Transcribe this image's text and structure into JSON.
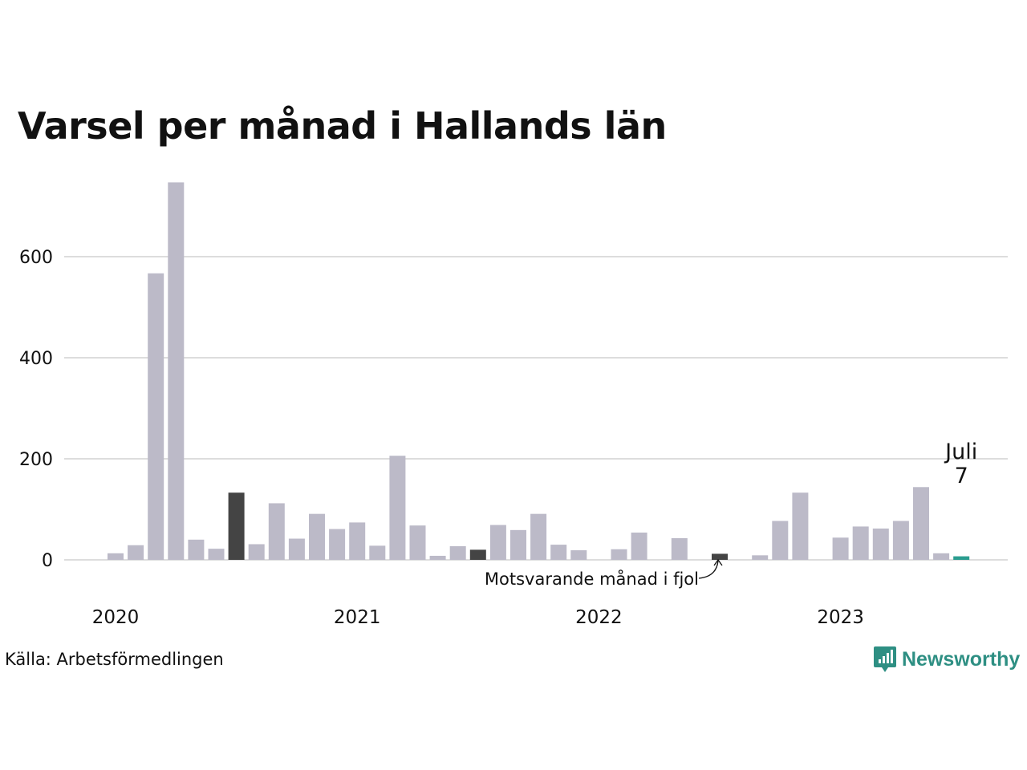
{
  "title": "Varsel per månad i Hallands län",
  "source": "Källa: Arbetsförmedlingen",
  "brand": "Newsworthy",
  "colors": {
    "bar": "#bcbac8",
    "same_month": "#444444",
    "latest": "#2a9d8f",
    "grid": "#dddddd",
    "brand": "#2e8f83"
  },
  "chart_data": {
    "type": "bar",
    "x_start": "2020-01",
    "categories": [
      "2020-01",
      "2020-02",
      "2020-03",
      "2020-04",
      "2020-05",
      "2020-06",
      "2020-07",
      "2020-08",
      "2020-09",
      "2020-10",
      "2020-11",
      "2020-12",
      "2021-01",
      "2021-02",
      "2021-03",
      "2021-04",
      "2021-05",
      "2021-06",
      "2021-07",
      "2021-08",
      "2021-09",
      "2021-10",
      "2021-11",
      "2021-12",
      "2022-01",
      "2022-02",
      "2022-03",
      "2022-04",
      "2022-05",
      "2022-06",
      "2022-07",
      "2022-08",
      "2022-09",
      "2022-10",
      "2022-11",
      "2022-12",
      "2023-01",
      "2023-02",
      "2023-03",
      "2023-04",
      "2023-05",
      "2023-06",
      "2023-07"
    ],
    "values": [
      13,
      29,
      567,
      747,
      40,
      22,
      133,
      31,
      112,
      42,
      91,
      61,
      74,
      28,
      206,
      68,
      8,
      27,
      20,
      69,
      59,
      91,
      30,
      19,
      0,
      21,
      54,
      0,
      43,
      0,
      12,
      0,
      9,
      77,
      133,
      0,
      44,
      66,
      62,
      77,
      144,
      13,
      7
    ],
    "highlight_same_month": [
      "2020-07",
      "2021-07",
      "2022-07"
    ],
    "latest": "2023-07",
    "ylim": [
      0,
      760
    ],
    "y_ticks": [
      0,
      200,
      400,
      600
    ],
    "x_tick_labels": [
      "2020",
      "2021",
      "2022",
      "2023"
    ],
    "grid": true,
    "annotations": {
      "latest_month": "Juli",
      "latest_value": "7",
      "same_month_label": "Motsvarande månad i fjol"
    }
  }
}
